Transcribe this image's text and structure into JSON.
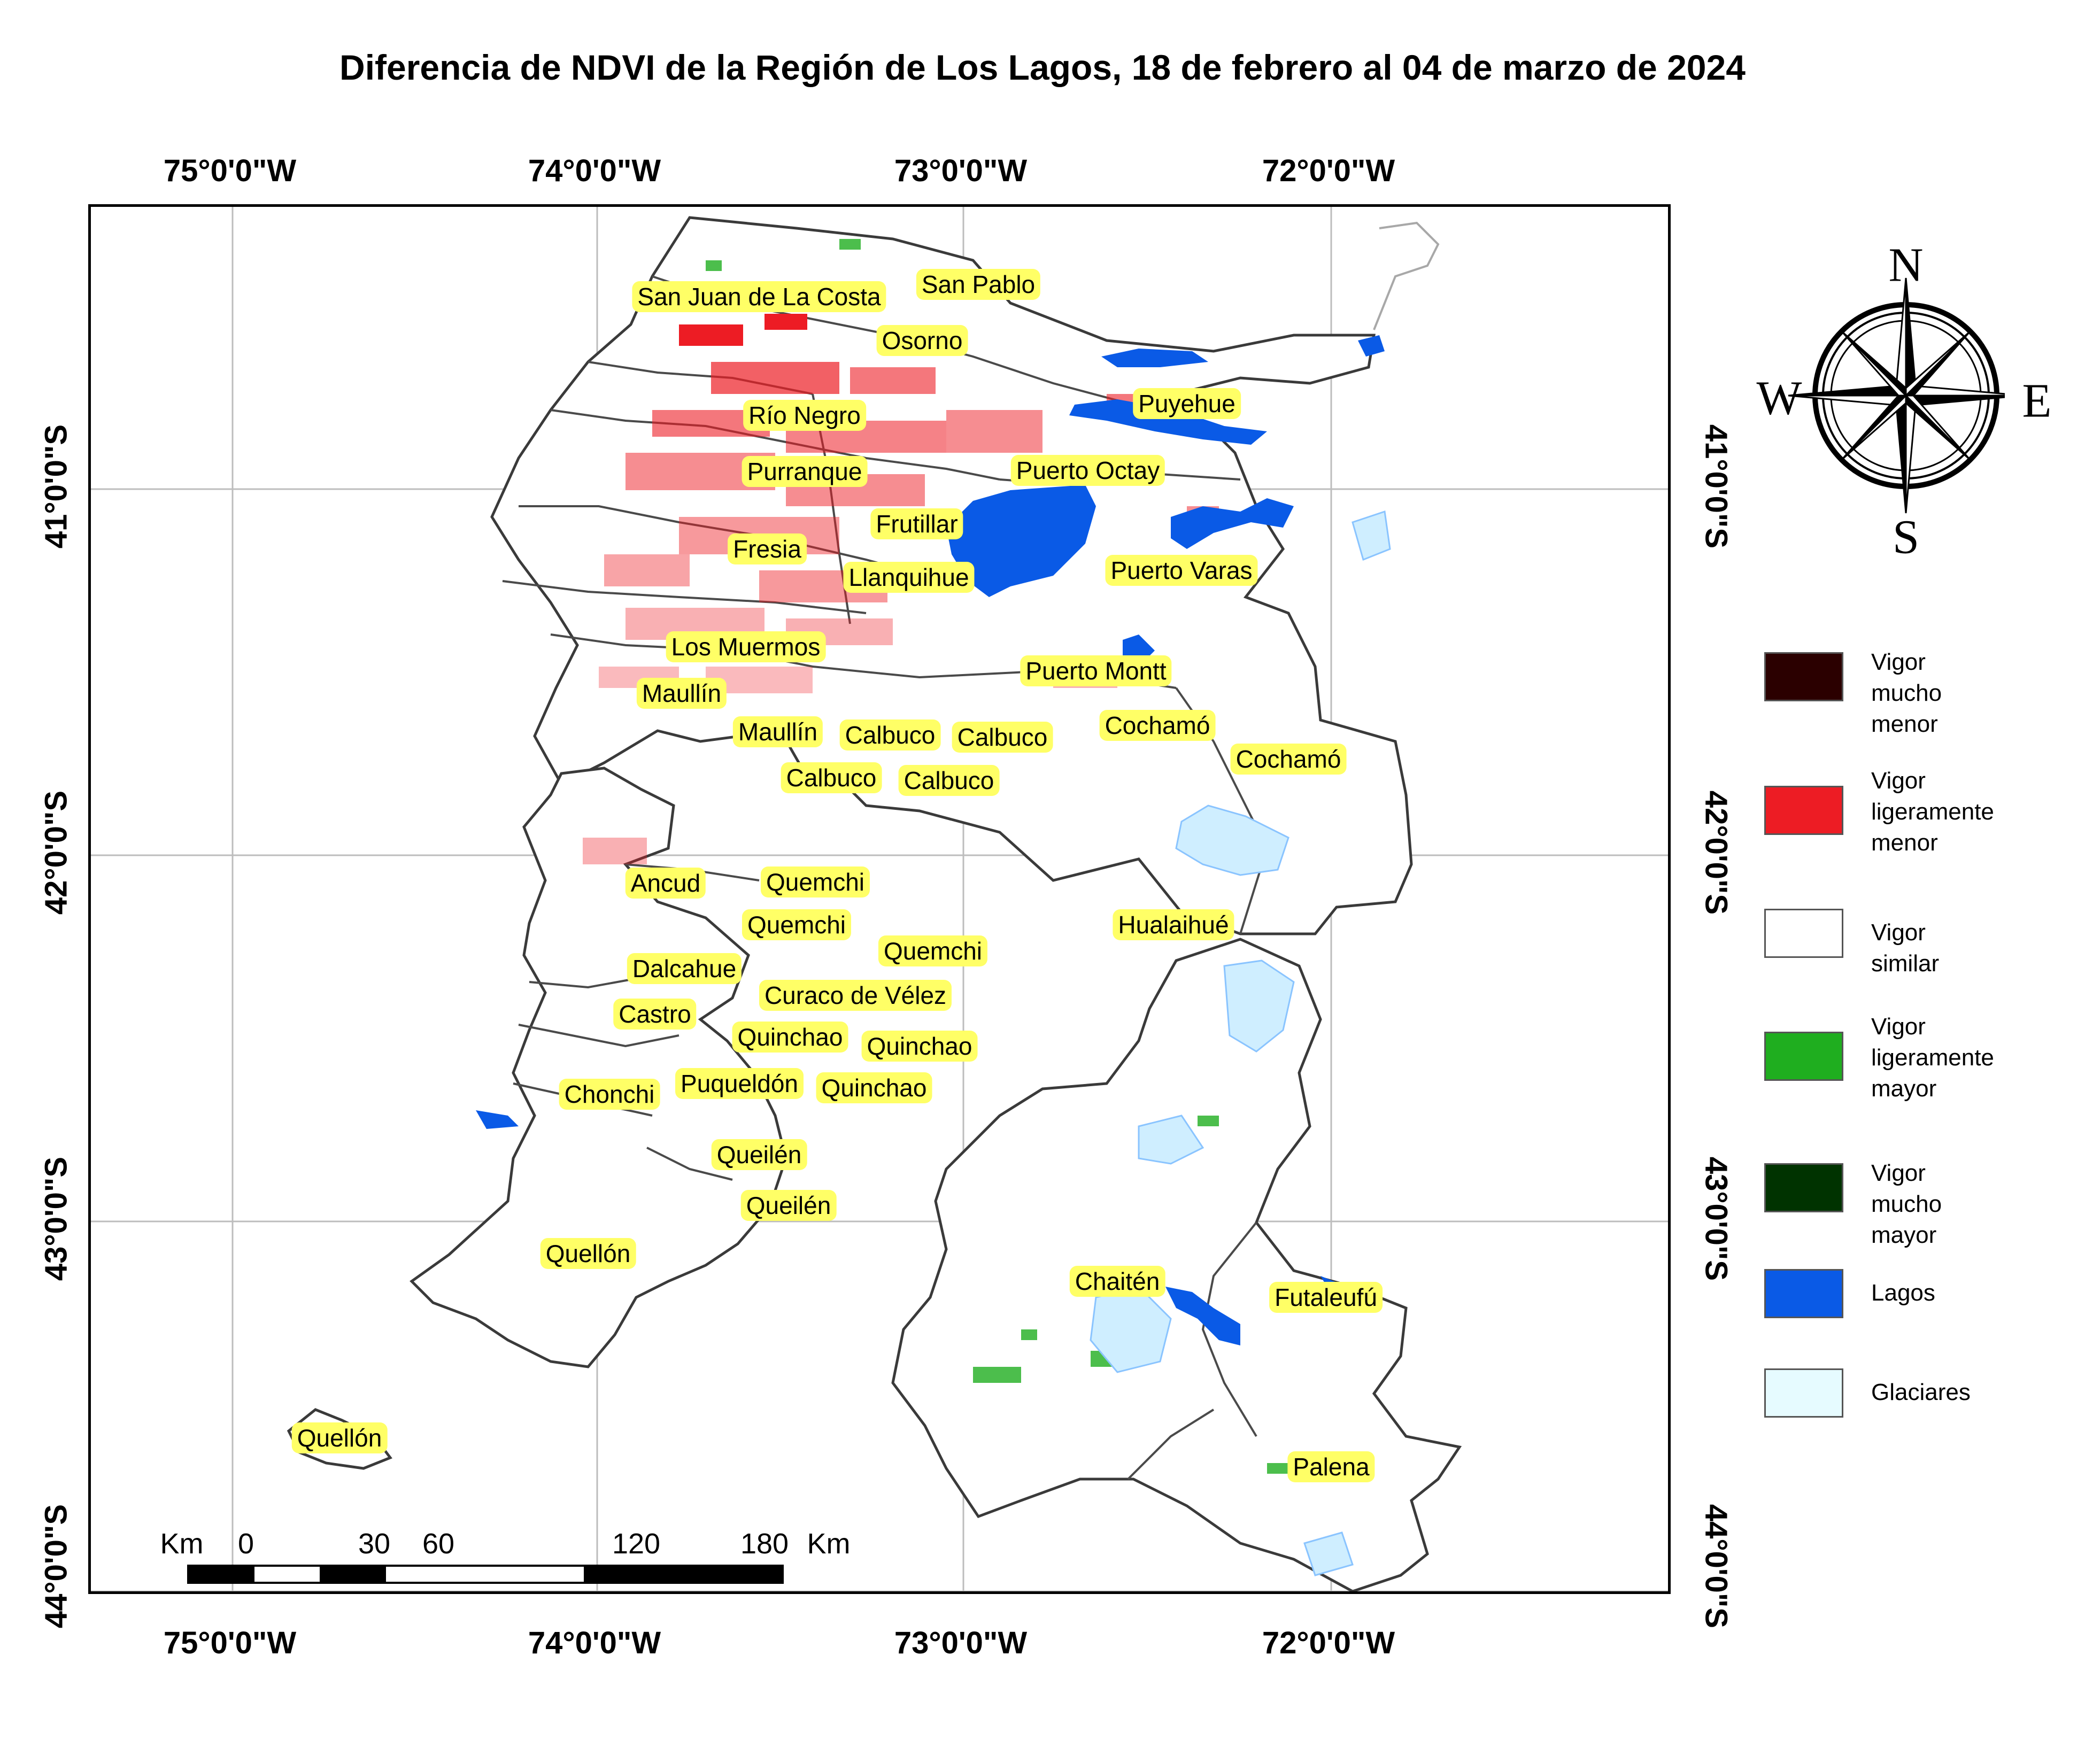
{
  "title": "Diferencia de NDVI de la Región de Los Lagos, 18 de febrero al 04 de marzo de 2024",
  "longitude_labels": [
    "75°0'0\"W",
    "74°0'0\"W",
    "73°0'0\"W",
    "72°0'0\"W"
  ],
  "latitude_labels": [
    "41°0'0\"S",
    "42°0'0\"S",
    "43°0'0\"S",
    "44°0'0\"S"
  ],
  "places": [
    "San Juan de La Costa",
    "San Pablo",
    "Osorno",
    "Río Negro",
    "Puyehue",
    "Purranque",
    "Puerto Octay",
    "Frutillar",
    "Fresia",
    "Puerto Varas",
    "Llanquihue",
    "Los Muermos",
    "Puerto Montt",
    "Maullín",
    "Maullín",
    "Calbuco",
    "Calbuco",
    "Cochamó",
    "Cochamó",
    "Calbuco",
    "Calbuco",
    "Ancud",
    "Quemchi",
    "Quemchi",
    "Hualaihué",
    "Quemchi",
    "Dalcahue",
    "Curaco de Vélez",
    "Castro",
    "Quinchao",
    "Quinchao",
    "Puqueldón",
    "Quinchao",
    "Chonchi",
    "Queilén",
    "Queilén",
    "Quellón",
    "Chaitén",
    "Futaleufú",
    "Quellón",
    "Palena"
  ],
  "legend": [
    {
      "label": "Vigor mucho\nmenor",
      "color": "#2b0000"
    },
    {
      "label": "Vigor\nligeramente\nmenor",
      "color": "#ed1c24"
    },
    {
      "label": "Vigor similar",
      "color": "#ffffff"
    },
    {
      "label": "Vigor\nligeramente\nmayor",
      "color": "#1fae1f"
    },
    {
      "label": "Vigor mucho\nmayor",
      "color": "#003300"
    },
    {
      "label": "Lagos",
      "color": "#0a5ae6"
    },
    {
      "label": "Glaciares",
      "color": "#e6fbff"
    }
  ],
  "compass": {
    "n": "N",
    "s": "S",
    "e": "E",
    "w": "W"
  },
  "scale_bar": {
    "unit": "Km",
    "ticks": [
      "0",
      "30",
      "60",
      "120",
      "180"
    ]
  }
}
